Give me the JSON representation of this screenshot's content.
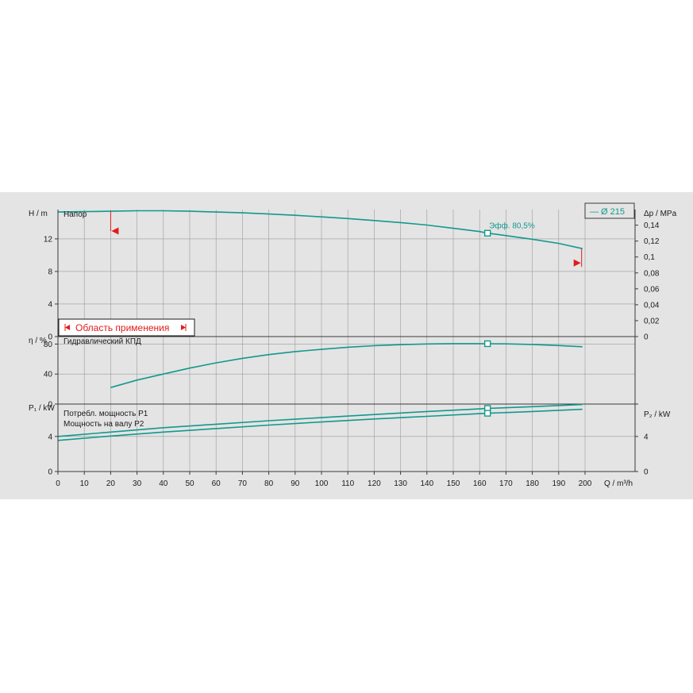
{
  "colors": {
    "curve": "#12998c",
    "range": "#e21b1b",
    "grid": "#9a9a9a",
    "panel": "#e4e4e4"
  },
  "legend": {
    "diameter_label": "— Ø 215"
  },
  "range_box": {
    "label": "Область применения"
  },
  "chart_data": [
    {
      "type": "line",
      "panel": "head",
      "title": "Напор",
      "ylabel_left": "H / m",
      "ylabel_right": "Δp / MPa",
      "ylim": [
        0,
        15.6
      ],
      "yticks": [
        "0",
        "4",
        "8",
        "12"
      ],
      "yticks_right": [
        "0",
        "0,02",
        "0,04",
        "0,06",
        "0,08",
        "0,1",
        "0,12",
        "0,14"
      ],
      "x": [
        0,
        10,
        20,
        30,
        40,
        50,
        60,
        70,
        80,
        90,
        100,
        110,
        120,
        130,
        140,
        150,
        160,
        163,
        170,
        180,
        190,
        199
      ],
      "series": [
        {
          "name": "Ø 215",
          "values": [
            15.3,
            15.35,
            15.4,
            15.45,
            15.45,
            15.4,
            15.3,
            15.2,
            15.05,
            14.9,
            14.7,
            14.5,
            14.25,
            14.0,
            13.7,
            13.3,
            12.9,
            12.7,
            12.4,
            11.95,
            11.45,
            10.8
          ]
        }
      ],
      "duty_point": {
        "x": 163,
        "y": 12.7,
        "label": "Эфф.  80,5%"
      },
      "operating_range": {
        "x_min": 20,
        "x_max": 199
      }
    },
    {
      "type": "line",
      "panel": "efficiency",
      "title": "Гидравлический КПД",
      "ylabel_left": "η / %",
      "ylim": [
        0,
        90
      ],
      "yticks": [
        "0",
        "40",
        "80"
      ],
      "x": [
        20,
        30,
        40,
        50,
        60,
        70,
        80,
        90,
        100,
        110,
        120,
        130,
        140,
        150,
        160,
        163,
        170,
        180,
        190,
        199
      ],
      "series": [
        {
          "name": "η",
          "values": [
            22,
            32,
            40,
            48,
            55,
            61,
            66,
            70,
            73,
            75.8,
            77.8,
            79.2,
            80.2,
            80.6,
            80.6,
            80.5,
            80.3,
            79.5,
            78,
            76.5
          ]
        }
      ],
      "duty_point": {
        "x": 163,
        "y": 80.5
      }
    },
    {
      "type": "line",
      "panel": "power",
      "title": "",
      "ylabel_left": "P₁ / kW",
      "ylabel_right": "P₂ / kW",
      "ylim": [
        0,
        7.7
      ],
      "yticks": [
        "0",
        "4"
      ],
      "yticks_right": [
        "0",
        "4"
      ],
      "xlabel": "Q / m³/h",
      "xticks": [
        "0",
        "10",
        "20",
        "30",
        "40",
        "50",
        "60",
        "70",
        "80",
        "90",
        "100",
        "110",
        "120",
        "130",
        "140",
        "150",
        "160",
        "170",
        "180",
        "190",
        "200"
      ],
      "x": [
        0,
        20,
        40,
        60,
        80,
        100,
        120,
        140,
        160,
        163,
        180,
        199
      ],
      "series": [
        {
          "name": "Потребл. мощность P1",
          "values": [
            4.0,
            4.5,
            5.0,
            5.4,
            5.8,
            6.15,
            6.5,
            6.85,
            7.15,
            7.2,
            7.4,
            7.65
          ]
        },
        {
          "name": "Мощность на валу P2",
          "values": [
            3.55,
            4.05,
            4.5,
            4.9,
            5.3,
            5.65,
            6.0,
            6.3,
            6.6,
            6.65,
            6.85,
            7.1
          ]
        }
      ],
      "duty_points": [
        {
          "x": 163,
          "y": 7.2
        },
        {
          "x": 163,
          "y": 6.65
        }
      ]
    }
  ]
}
